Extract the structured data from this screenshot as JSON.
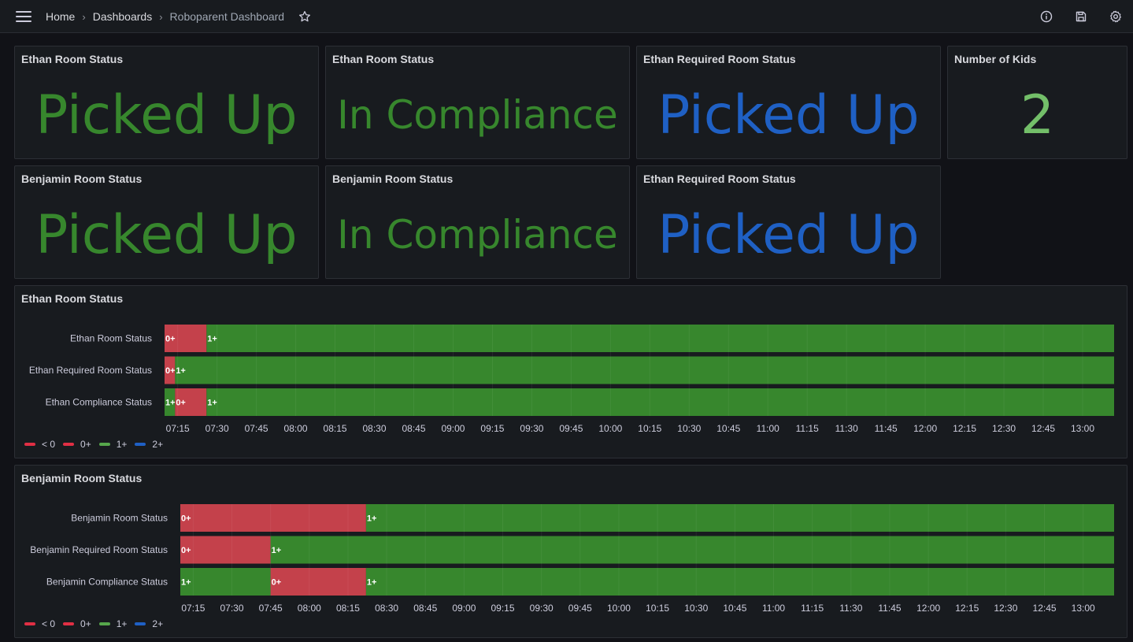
{
  "breadcrumb": {
    "home": "Home",
    "sep": "›",
    "dashboards": "Dashboards",
    "current": "Roboparent Dashboard"
  },
  "icons": {
    "menu": "hamburger-icon",
    "star": "star-icon",
    "info": "info-icon",
    "save": "save-icon",
    "settings": "gear-icon"
  },
  "colors": {
    "red": "#c4414b",
    "red_legend": "#e02f44",
    "green": "#37872d",
    "green_legend": "#56a64b",
    "blue": "#1f60c4",
    "light_green": "#73bf69",
    "bg": "#111217",
    "panel": "#181b1f"
  },
  "stats": [
    {
      "title": "Ethan Room Status",
      "value": "Picked Up",
      "color": "green"
    },
    {
      "title": "Ethan Room Status",
      "value": "In Compliance",
      "color": "green"
    },
    {
      "title": "Ethan Required Room Status",
      "value": "Picked Up",
      "color": "blue"
    },
    {
      "title": "Number of Kids",
      "value": "2",
      "color": "lgreen"
    },
    {
      "title": "Benjamin Room Status",
      "value": "Picked Up",
      "color": "green"
    },
    {
      "title": "Benjamin Room Status",
      "value": "In Compliance",
      "color": "green"
    },
    {
      "title": "Ethan Required Room Status",
      "value": "Picked Up",
      "color": "blue"
    }
  ],
  "legend": [
    {
      "label": "< 0",
      "color": "red"
    },
    {
      "label": "0+",
      "color": "red"
    },
    {
      "label": "1+",
      "color": "green"
    },
    {
      "label": "2+",
      "color": "blue"
    }
  ],
  "chart_data": [
    {
      "type": "state-timeline",
      "title": "Ethan Room Status",
      "x_range": [
        "07:10",
        "13:12"
      ],
      "x_ticks": [
        "07:15",
        "07:30",
        "07:45",
        "08:00",
        "08:15",
        "08:30",
        "08:45",
        "09:00",
        "09:15",
        "09:30",
        "09:45",
        "10:00",
        "10:15",
        "10:30",
        "10:45",
        "11:00",
        "11:15",
        "11:30",
        "11:45",
        "12:00",
        "12:15",
        "12:30",
        "12:45",
        "13:00"
      ],
      "rows": [
        {
          "name": "Ethan Room Status",
          "segments": [
            {
              "start": "07:10",
              "end": "07:26",
              "state": "0+"
            },
            {
              "start": "07:26",
              "end": "13:12",
              "state": "1+"
            }
          ]
        },
        {
          "name": "Ethan Required Room Status",
          "segments": [
            {
              "start": "07:10",
              "end": "07:14",
              "state": "0+"
            },
            {
              "start": "07:14",
              "end": "13:12",
              "state": "1+"
            }
          ]
        },
        {
          "name": "Ethan Compliance Status",
          "segments": [
            {
              "start": "07:10",
              "end": "07:14",
              "state": "1+"
            },
            {
              "start": "07:14",
              "end": "07:26",
              "state": "0+"
            },
            {
              "start": "07:26",
              "end": "13:12",
              "state": "1+"
            }
          ]
        }
      ]
    },
    {
      "type": "state-timeline",
      "title": "Benjamin Room Status",
      "x_range": [
        "07:10",
        "13:12"
      ],
      "x_ticks": [
        "07:15",
        "07:30",
        "07:45",
        "08:00",
        "08:15",
        "08:30",
        "08:45",
        "09:00",
        "09:15",
        "09:30",
        "09:45",
        "10:00",
        "10:15",
        "10:30",
        "10:45",
        "11:00",
        "11:15",
        "11:30",
        "11:45",
        "12:00",
        "12:15",
        "12:30",
        "12:45",
        "13:00"
      ],
      "rows": [
        {
          "name": "Benjamin Room Status",
          "segments": [
            {
              "start": "07:10",
              "end": "08:22",
              "state": "0+"
            },
            {
              "start": "08:22",
              "end": "13:12",
              "state": "1+"
            }
          ]
        },
        {
          "name": "Benjamin Required Room Status",
          "segments": [
            {
              "start": "07:10",
              "end": "07:45",
              "state": "0+"
            },
            {
              "start": "07:45",
              "end": "13:12",
              "state": "1+"
            }
          ]
        },
        {
          "name": "Benjamin Compliance Status",
          "segments": [
            {
              "start": "07:10",
              "end": "07:45",
              "state": "1+"
            },
            {
              "start": "07:45",
              "end": "08:22",
              "state": "0+"
            },
            {
              "start": "08:22",
              "end": "13:12",
              "state": "1+"
            }
          ]
        }
      ]
    }
  ]
}
